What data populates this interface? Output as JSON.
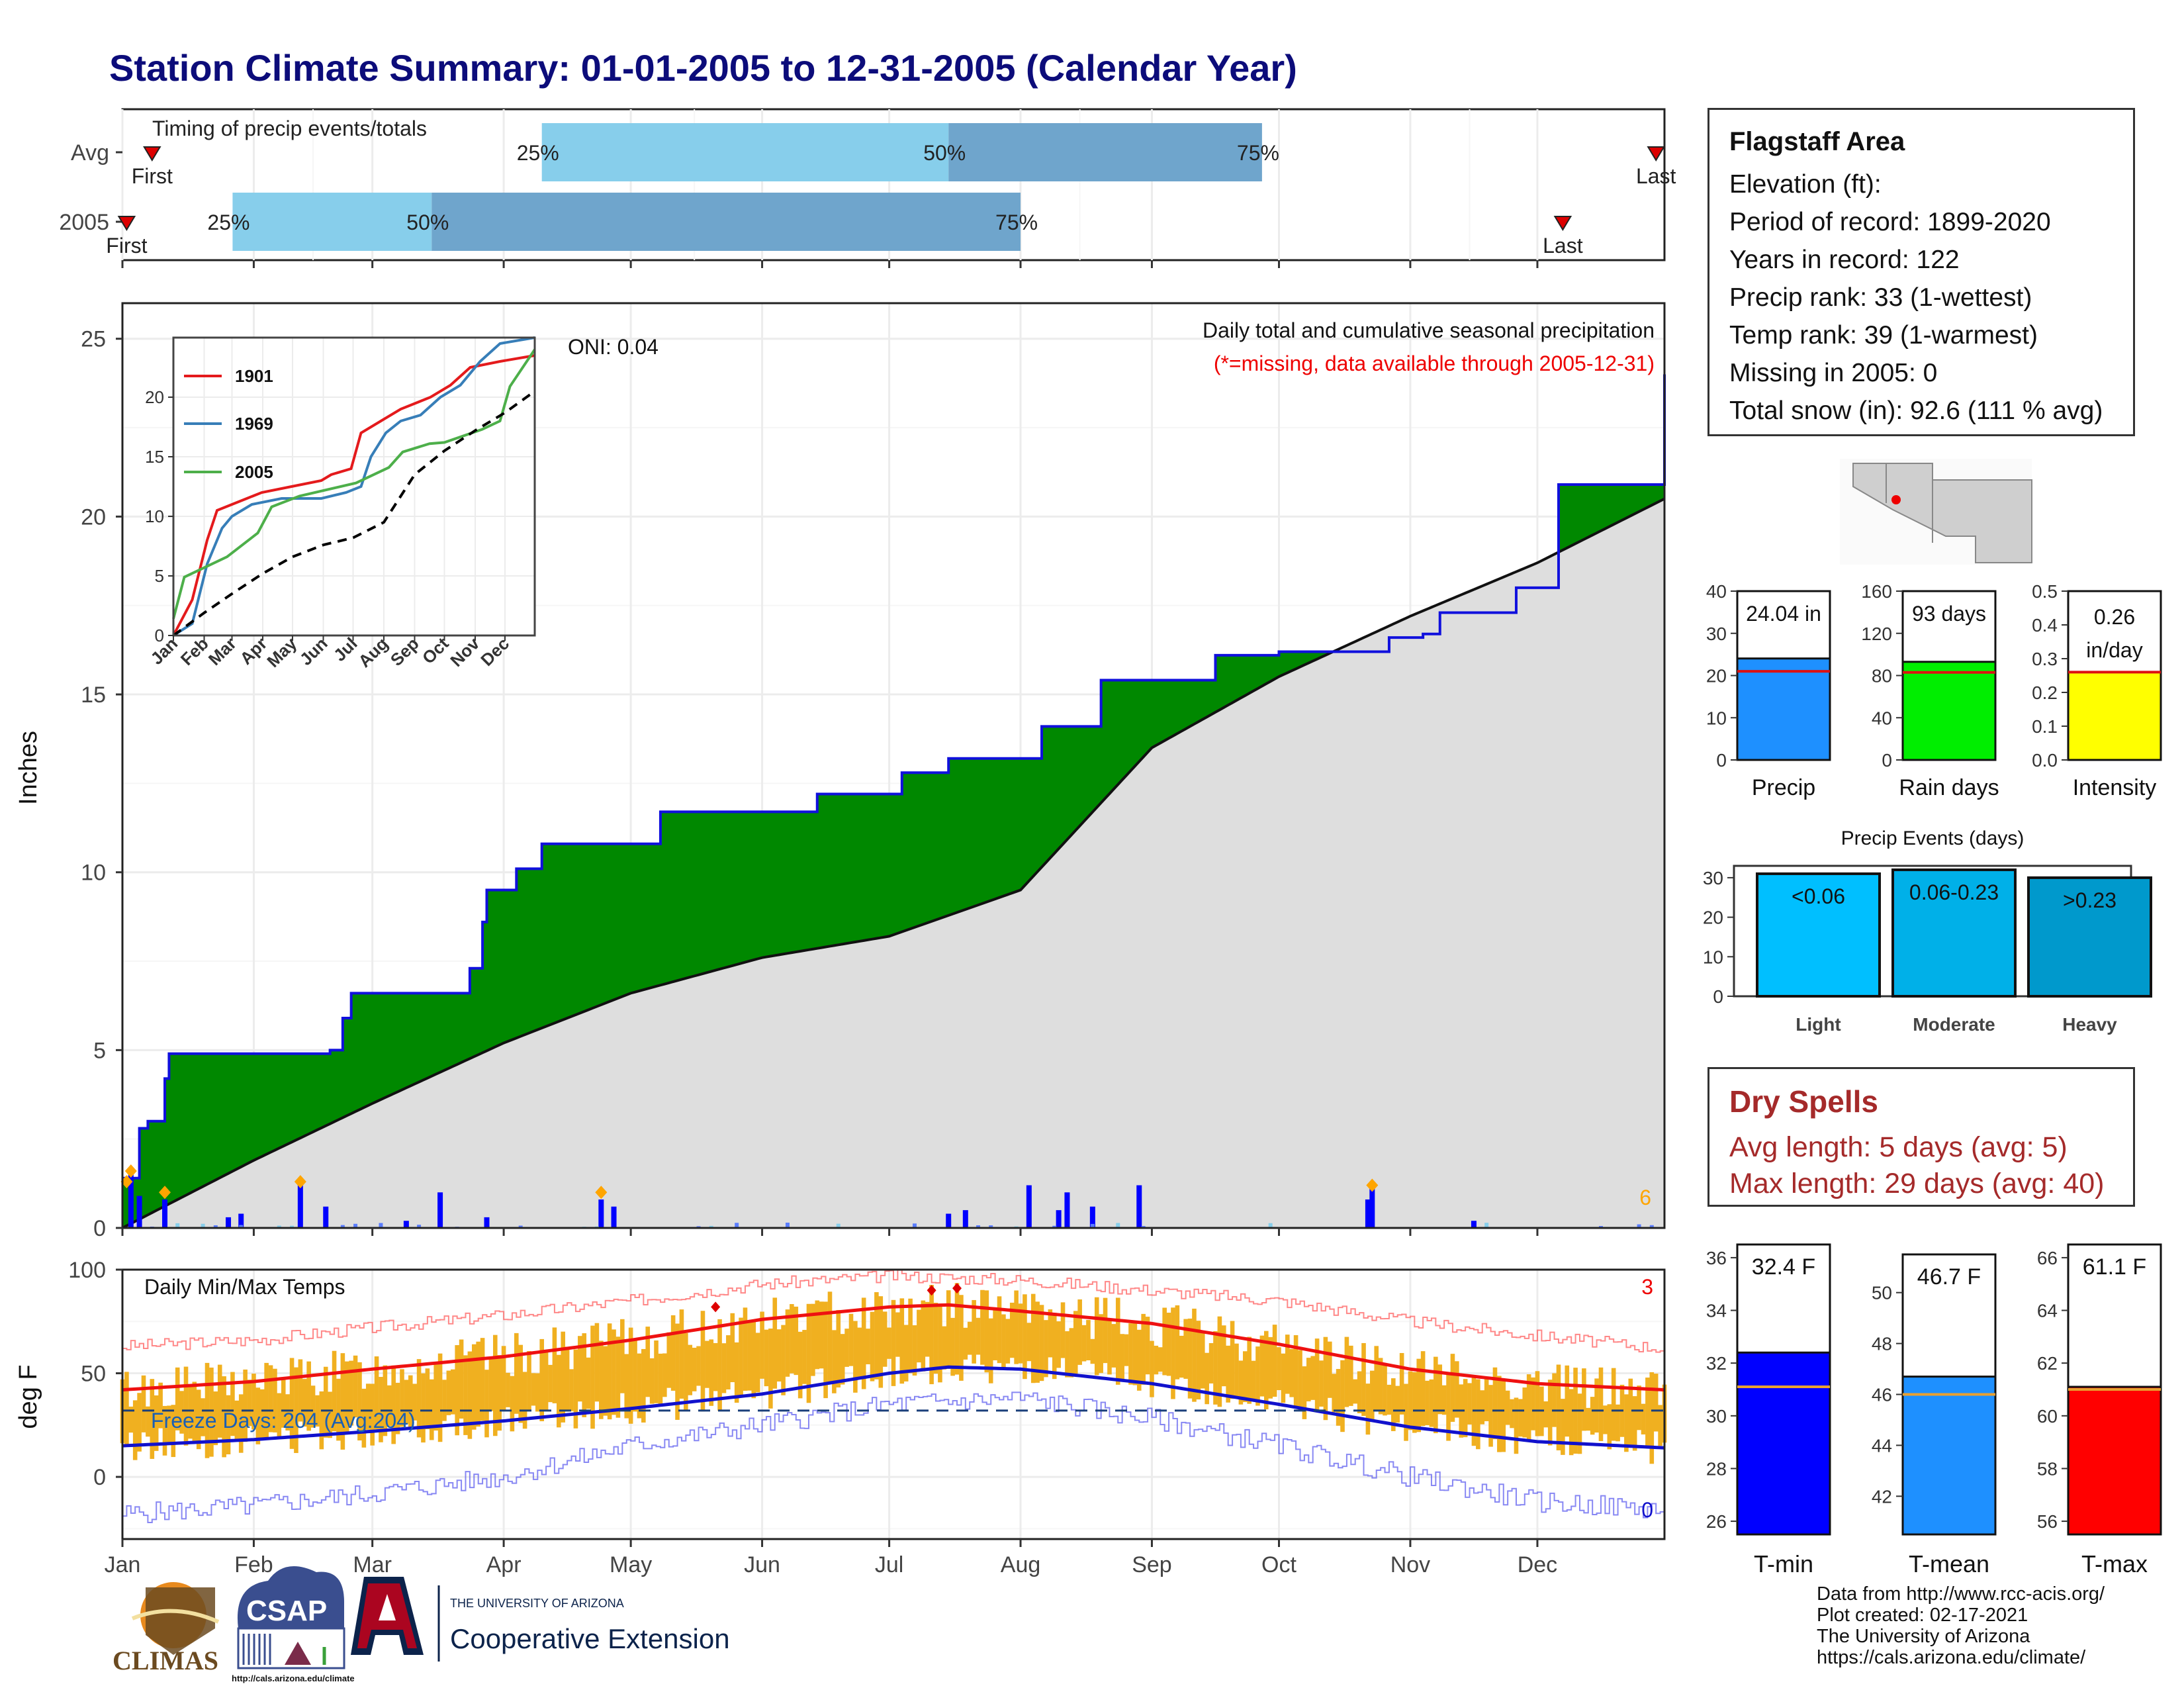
{
  "title": "Station Climate Summary: 01-01-2005 to 12-31-2005 (Calendar Year)",
  "info_box": {
    "station": "Flagstaff Area",
    "lines": [
      "Elevation (ft):",
      "Period of record: 1899-2020",
      "Years in record: 122",
      "Precip rank: 33 (1-wettest)",
      "Temp rank: 39 (1-warmest)",
      "Missing in 2005: 0",
      "Total snow (in): 92.6 (111 % avg)"
    ]
  },
  "dry_spells": {
    "title": "Dry Spells",
    "avg_length": "Avg length: 5 days (avg: 5)",
    "max_length": "Max length: 29 days (avg: 40)"
  },
  "credits": [
    "Data from http://www.rcc-acis.org/",
    "Plot created: 02-17-2021",
    "The University of Arizona",
    "https://cals.arizona.edu/climate/"
  ],
  "logos": {
    "climas": "CLIMAS",
    "csap": "CSAP",
    "csap_url": "http://cals.arizona.edu/climate",
    "ua_small": "THE UNIVERSITY OF ARIZONA",
    "ua_large": "Cooperative Extension"
  },
  "colors": {
    "title": "#0c0c7a",
    "precip_cum": "#008800",
    "precip_line": "#1010dd",
    "climo_fill": "#dedede",
    "tmax": "#ee1111",
    "tmin": "#1111cc",
    "temp_bar": "#f0b020",
    "light_blue": "#87ceeb",
    "mid_blue": "#6fa5cc"
  },
  "chart_data": [
    {
      "id": "timing",
      "type": "bar",
      "title": "Timing of precip events/totals",
      "rows": [
        {
          "label": "Avg",
          "first": "01-08",
          "p25": "04-10",
          "p50": "07-15",
          "p75": "09-27",
          "last": "12-29"
        },
        {
          "label": "2005",
          "first": "01-02",
          "p25": "01-27",
          "p50": "03-15",
          "p75": "08-01",
          "last": "12-07"
        }
      ],
      "markers": [
        "First",
        "Last"
      ],
      "pct_labels": [
        "25%",
        "50%",
        "75%"
      ]
    },
    {
      "id": "precip",
      "type": "area",
      "title": "Daily total and cumulative seasonal precipitation",
      "subtitle": "(*=missing, data available through 2005-12-31)",
      "ylabel": "Inches",
      "ylim": [
        0,
        26
      ],
      "yticks": [
        0,
        5,
        10,
        15,
        20,
        25
      ],
      "oni": "ONI: 0.04",
      "count_label": "6",
      "cumulative_2005": {
        "doy": [
          1,
          5,
          7,
          11,
          12,
          50,
          53,
          55,
          72,
          83,
          86,
          87,
          94,
          100,
          110,
          128,
          165,
          185,
          196,
          200,
          218,
          232,
          235,
          252,
          259,
          274,
          300,
          308,
          312,
          330,
          340,
          365
        ],
        "value": [
          1.4,
          2.8,
          3.0,
          4.2,
          4.9,
          5.0,
          5.9,
          6.6,
          6.6,
          7.3,
          8.6,
          9.5,
          10.1,
          10.8,
          10.8,
          11.7,
          12.2,
          12.8,
          13.2,
          13.2,
          14.1,
          15.4,
          15.4,
          15.4,
          16.1,
          16.2,
          16.6,
          16.7,
          17.3,
          18.0,
          20.9,
          24.0
        ]
      },
      "climatology": {
        "doy": [
          1,
          32,
          60,
          91,
          121,
          152,
          182,
          213,
          244,
          274,
          305,
          335,
          365
        ],
        "value": [
          0,
          1.9,
          3.5,
          5.2,
          6.6,
          7.6,
          8.2,
          9.5,
          13.5,
          15.5,
          17.2,
          18.7,
          20.5
        ]
      },
      "daily_events": [
        {
          "doy": 3,
          "value": 1.6
        },
        {
          "doy": 5,
          "value": 0.9
        },
        {
          "doy": 11,
          "value": 0.8
        },
        {
          "doy": 26,
          "value": 0.3
        },
        {
          "doy": 29,
          "value": 0.4
        },
        {
          "doy": 43,
          "value": 1.2
        },
        {
          "doy": 49,
          "value": 0.6
        },
        {
          "doy": 68,
          "value": 0.2
        },
        {
          "doy": 76,
          "value": 1.0
        },
        {
          "doy": 87,
          "value": 0.3
        },
        {
          "doy": 114,
          "value": 0.8
        },
        {
          "doy": 117,
          "value": 0.6
        },
        {
          "doy": 196,
          "value": 0.4
        },
        {
          "doy": 200,
          "value": 0.5
        },
        {
          "doy": 215,
          "value": 1.2
        },
        {
          "doy": 222,
          "value": 0.5
        },
        {
          "doy": 224,
          "value": 1.0
        },
        {
          "doy": 230,
          "value": 0.6
        },
        {
          "doy": 241,
          "value": 1.2
        },
        {
          "doy": 296,
          "value": 1.2
        },
        {
          "doy": 295,
          "value": 0.8
        },
        {
          "doy": 320,
          "value": 0.2
        }
      ],
      "extreme_days": [
        {
          "doy": 2,
          "value": 1.3
        },
        {
          "doy": 3,
          "value": 1.6
        },
        {
          "doy": 11,
          "value": 1.0
        },
        {
          "doy": 43,
          "value": 1.3
        },
        {
          "doy": 114,
          "value": 1.0
        },
        {
          "doy": 296,
          "value": 1.2
        }
      ]
    },
    {
      "id": "inset",
      "type": "line",
      "xlabels": [
        "Jan",
        "Feb",
        "Mar",
        "Apr",
        "May",
        "Jun",
        "Jul",
        "Aug",
        "Sep",
        "Oct",
        "Nov",
        "Dec"
      ],
      "ylim": [
        0,
        25
      ],
      "yticks": [
        0,
        5,
        10,
        15,
        20
      ],
      "series": [
        {
          "name": "1901",
          "color": "#e41a1c",
          "points": [
            [
              1,
              0
            ],
            [
              20,
              3
            ],
            [
              35,
              8
            ],
            [
              45,
              10.5
            ],
            [
              60,
              11
            ],
            [
              75,
              11.5
            ],
            [
              90,
              12
            ],
            [
              120,
              12.5
            ],
            [
              150,
              13
            ],
            [
              160,
              13.5
            ],
            [
              180,
              14
            ],
            [
              190,
              17
            ],
            [
              210,
              18
            ],
            [
              230,
              19
            ],
            [
              260,
              20
            ],
            [
              280,
              21
            ],
            [
              300,
              22.5
            ],
            [
              330,
              23
            ],
            [
              365,
              23.5
            ]
          ]
        },
        {
          "name": "1969",
          "color": "#377eb8",
          "points": [
            [
              1,
              0
            ],
            [
              20,
              1
            ],
            [
              35,
              6
            ],
            [
              50,
              9
            ],
            [
              60,
              10
            ],
            [
              80,
              11
            ],
            [
              110,
              11.5
            ],
            [
              150,
              11.5
            ],
            [
              175,
              12
            ],
            [
              190,
              12.5
            ],
            [
              200,
              15
            ],
            [
              215,
              17
            ],
            [
              230,
              18
            ],
            [
              250,
              18.5
            ],
            [
              270,
              20
            ],
            [
              290,
              21
            ],
            [
              310,
              23
            ],
            [
              330,
              24.5
            ],
            [
              365,
              25
            ]
          ]
        },
        {
          "name": "2005",
          "color": "#4daf4a",
          "points": [
            [
              1,
              1.4
            ],
            [
              12,
              4.9
            ],
            [
              55,
              6.6
            ],
            [
              86,
              8.6
            ],
            [
              100,
              10.8
            ],
            [
              128,
              11.7
            ],
            [
              185,
              12.8
            ],
            [
              218,
              14.1
            ],
            [
              232,
              15.4
            ],
            [
              259,
              16.1
            ],
            [
              274,
              16.2
            ],
            [
              312,
              17.3
            ],
            [
              330,
              18.0
            ],
            [
              340,
              20.9
            ],
            [
              365,
              24.0
            ]
          ]
        },
        {
          "name": "",
          "color": "#000000",
          "dashed": true,
          "points": [
            [
              1,
              0
            ],
            [
              32,
              1.9
            ],
            [
              60,
              3.5
            ],
            [
              91,
              5.2
            ],
            [
              121,
              6.6
            ],
            [
              152,
              7.6
            ],
            [
              182,
              8.2
            ],
            [
              213,
              9.5
            ],
            [
              244,
              13.5
            ],
            [
              274,
              15.5
            ],
            [
              305,
              17.2
            ],
            [
              335,
              18.7
            ],
            [
              365,
              20.5
            ]
          ]
        }
      ]
    },
    {
      "id": "temps",
      "type": "line",
      "title": "Daily Min/Max Temps",
      "ylabel": "deg F",
      "ylim": [
        -30,
        100
      ],
      "yticks": [
        0,
        50,
        100
      ],
      "freeze_label": "Freeze Days: 204 (Avg:204)",
      "freeze_line": 32,
      "count_high": "3",
      "count_low": "0",
      "xlabels": [
        "Jan",
        "Feb",
        "Mar",
        "Apr",
        "May",
        "Jun",
        "Jul",
        "Aug",
        "Sep",
        "Oct",
        "Nov",
        "Dec"
      ],
      "avg_tmax": {
        "doy": [
          1,
          32,
          60,
          91,
          121,
          152,
          182,
          196,
          213,
          244,
          274,
          305,
          335,
          365
        ],
        "value": [
          42,
          46,
          52,
          58,
          66,
          76,
          82,
          83,
          80,
          74,
          64,
          52,
          45,
          42
        ]
      },
      "avg_tmin": {
        "doy": [
          1,
          32,
          60,
          91,
          121,
          152,
          182,
          196,
          213,
          244,
          274,
          305,
          335,
          365
        ],
        "value": [
          15,
          18,
          22,
          27,
          33,
          40,
          50,
          53,
          52,
          45,
          35,
          24,
          17,
          14
        ]
      },
      "record_high": {
        "doy": [
          1,
          32,
          60,
          91,
          121,
          152,
          182,
          213,
          244,
          274,
          305,
          335,
          365
        ],
        "value": [
          63,
          66,
          72,
          78,
          85,
          93,
          97,
          95,
          90,
          85,
          75,
          68,
          62
        ]
      },
      "record_low": {
        "doy": [
          1,
          32,
          60,
          91,
          121,
          152,
          182,
          213,
          244,
          274,
          305,
          335,
          365
        ],
        "value": [
          -18,
          -14,
          -8,
          0,
          15,
          25,
          35,
          38,
          28,
          15,
          0,
          -12,
          -16
        ]
      },
      "record_markers": [
        {
          "doy": 141,
          "value": 82
        },
        {
          "doy": 192,
          "value": 90
        },
        {
          "doy": 198,
          "value": 91
        }
      ]
    },
    {
      "id": "precip_bars",
      "type": "bar",
      "categories": [
        "Precip",
        "Rain days",
        "Intensity"
      ],
      "panels": [
        {
          "category": "Precip",
          "value": 24.04,
          "avg": 21,
          "label": "24.04 in",
          "ylim": [
            0,
            40
          ],
          "yticks": [
            0,
            10,
            20,
            30,
            40
          ],
          "color": "#1e90ff"
        },
        {
          "category": "Rain days",
          "value": 93,
          "avg": 83,
          "label": "93 days",
          "ylim": [
            0,
            160
          ],
          "yticks": [
            0,
            40,
            80,
            120,
            160
          ],
          "color": "#00ee00"
        },
        {
          "category": "Intensity",
          "value": 0.26,
          "avg": 0.26,
          "label": "0.26 in/day",
          "ylim": [
            0,
            0.5
          ],
          "yticks": [
            0.0,
            0.1,
            0.2,
            0.3,
            0.4,
            0.5
          ],
          "color": "#ffff00"
        }
      ]
    },
    {
      "id": "precip_events",
      "type": "bar",
      "title": "Precip Events (days)",
      "categories": [
        "Light",
        "Moderate",
        "Heavy"
      ],
      "values": [
        31,
        32,
        30
      ],
      "labels": [
        "<0.06",
        "0.06-0.23",
        ">0.23"
      ],
      "ylim": [
        0,
        33
      ],
      "yticks": [
        0,
        10,
        20,
        30
      ],
      "colors": [
        "#00bfff",
        "#00b0e8",
        "#0099cc"
      ]
    },
    {
      "id": "temp_bars",
      "type": "bar",
      "categories": [
        "T-min",
        "T-mean",
        "T-max"
      ],
      "panels": [
        {
          "category": "T-min",
          "value": 32.4,
          "avg": 31.1,
          "label": "32.4 F",
          "ylim": [
            25.5,
            36.5
          ],
          "yticks": [
            26,
            28,
            30,
            32,
            34,
            36
          ],
          "color": "#0000ff"
        },
        {
          "category": "T-mean",
          "value": 46.7,
          "avg": 46.0,
          "label": "46.7 F",
          "ylim": [
            40.5,
            51.5
          ],
          "yticks": [
            42,
            44,
            46,
            48,
            50
          ],
          "color": "#1e90ff"
        },
        {
          "category": "T-max",
          "value": 61.1,
          "avg": 61.0,
          "label": "61.1 F",
          "ylim": [
            55.5,
            66.5
          ],
          "yticks": [
            56,
            58,
            60,
            62,
            64,
            66
          ],
          "color": "#ff0000"
        }
      ]
    }
  ]
}
